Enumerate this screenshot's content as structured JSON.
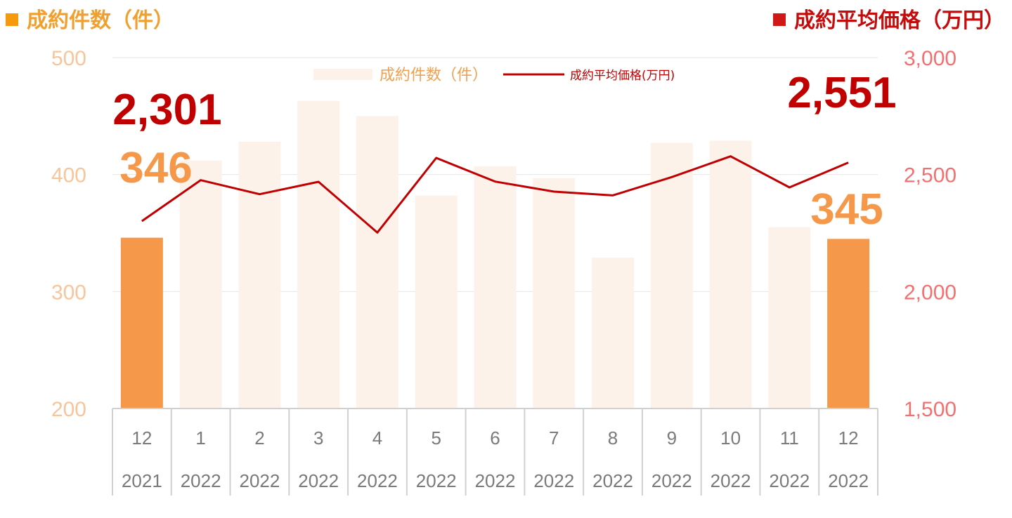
{
  "titles": {
    "left": "成約件数（件）",
    "right": "成約平均価格（万円）"
  },
  "colors": {
    "left_title": "#f0a030",
    "left_marker": "#f59a0a",
    "right_title": "#c40c0c",
    "right_marker": "#d01818",
    "bar_highlight": "#f5984a",
    "bar_normal": "#fdf2e9",
    "line": "#c00000",
    "left_axis_text": "#f8c59a",
    "right_axis_text": "#f47070",
    "highlight_count_label": "#f5984a",
    "highlight_price_label": "#c00000"
  },
  "chart_data": {
    "type": "bar+line",
    "categories": [
      [
        "12",
        "2021"
      ],
      [
        "1",
        "2022"
      ],
      [
        "2",
        "2022"
      ],
      [
        "3",
        "2022"
      ],
      [
        "4",
        "2022"
      ],
      [
        "5",
        "2022"
      ],
      [
        "6",
        "2022"
      ],
      [
        "7",
        "2022"
      ],
      [
        "8",
        "2022"
      ],
      [
        "9",
        "2022"
      ],
      [
        "10",
        "2022"
      ],
      [
        "11",
        "2022"
      ],
      [
        "12",
        "2022"
      ]
    ],
    "series": [
      {
        "name": "成約件数（件）",
        "type": "bar",
        "axis": "left",
        "values": [
          346,
          412,
          428,
          463,
          450,
          382,
          407,
          397,
          329,
          427,
          429,
          355,
          345
        ],
        "highlight": [
          0,
          12
        ]
      },
      {
        "name": "成約平均価格(万円)",
        "type": "line",
        "axis": "right",
        "values": [
          2301,
          2476,
          2416,
          2469,
          2252,
          2571,
          2470,
          2427,
          2411,
          2489,
          2578,
          2445,
          2551
        ]
      }
    ],
    "left_axis": {
      "min": 200,
      "max": 500,
      "ticks": [
        "200",
        "300",
        "400",
        "500"
      ]
    },
    "right_axis": {
      "min": 1500,
      "max": 3000,
      "ticks": [
        "1,500",
        "2,000",
        "2,500",
        "3,000"
      ]
    },
    "legend": {
      "placement": "top-center",
      "items": [
        {
          "label": "成約件数（件）",
          "kind": "bar"
        },
        {
          "label": "成約平均価格(万円)",
          "kind": "line"
        }
      ]
    },
    "annotations": [
      {
        "text": "2,301",
        "series": "line",
        "index": 0
      },
      {
        "text": "346",
        "series": "bar",
        "index": 0
      },
      {
        "text": "2,551",
        "series": "line",
        "index": 12
      },
      {
        "text": "345",
        "series": "bar",
        "index": 12
      }
    ],
    "grid": "horizontal"
  }
}
